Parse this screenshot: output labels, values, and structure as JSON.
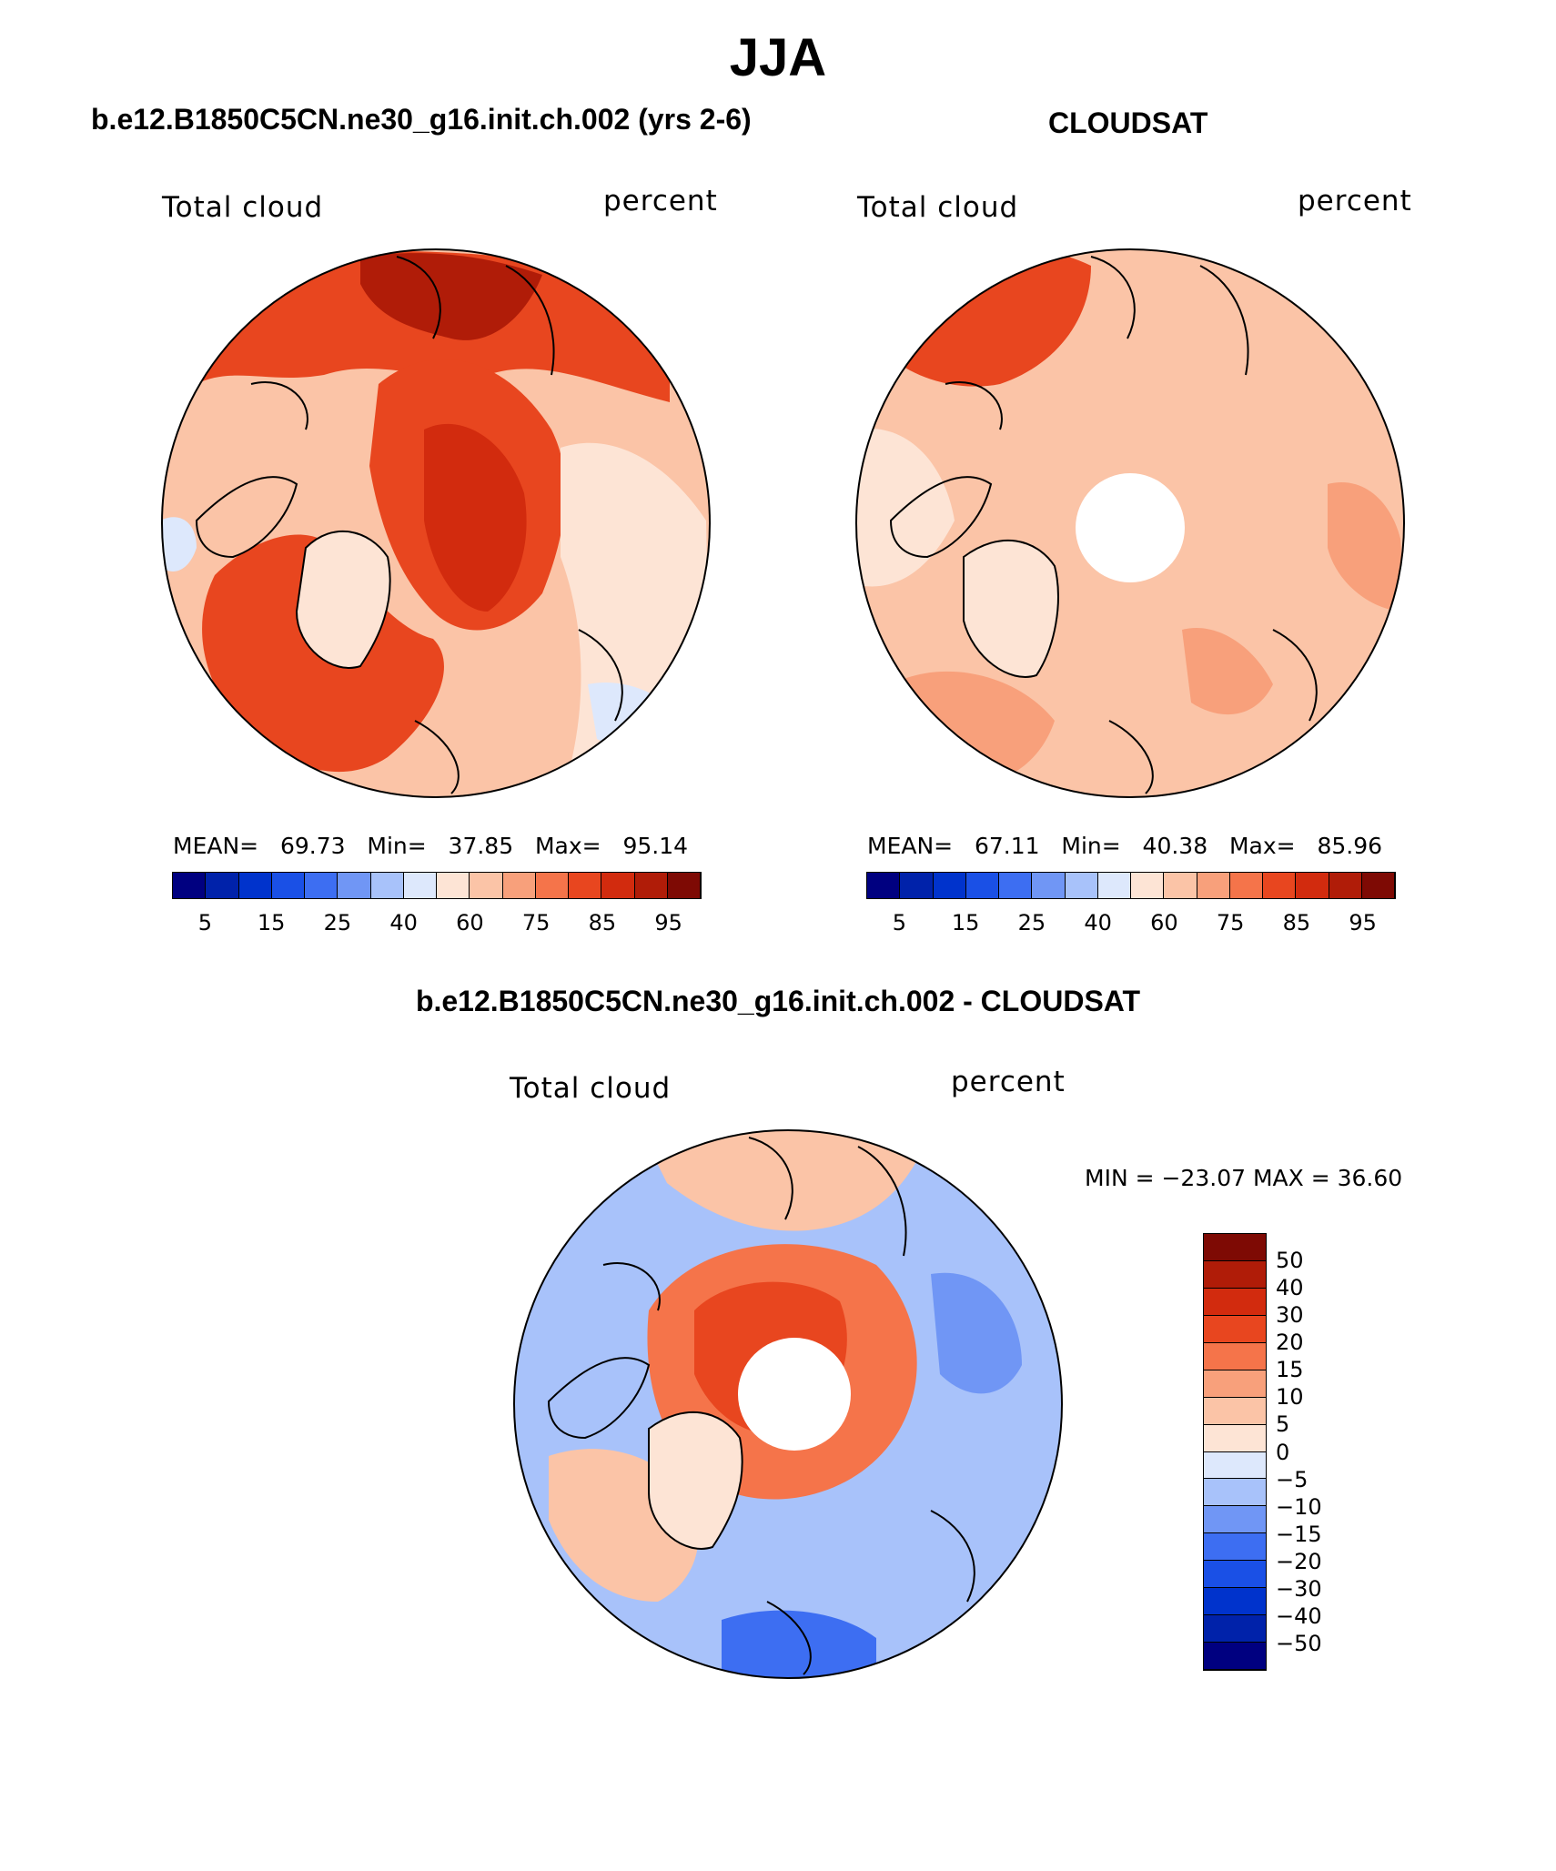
{
  "title": "JJA",
  "panels": {
    "model": {
      "title": "b.e12.B1850C5CN.ne30_g16.init.ch.002 (yrs 2-6)",
      "variable": "Total cloud",
      "units": "percent",
      "stats": {
        "mean_label": "MEAN=",
        "mean": "69.73",
        "min_label": "Min=",
        "min": "37.85",
        "max_label": "Max=",
        "max": "95.14"
      }
    },
    "obs": {
      "title": "CLOUDSAT",
      "variable": "Total cloud",
      "units": "percent",
      "stats": {
        "mean_label": "MEAN=",
        "mean": "67.11",
        "min_label": "Min=",
        "min": "40.38",
        "max_label": "Max=",
        "max": "85.96"
      }
    },
    "diff": {
      "title": "b.e12.B1850C5CN.ne30_g16.init.ch.002 - CLOUDSAT",
      "variable": "Total cloud",
      "units": "percent",
      "range_text": "MIN = −23.07 MAX =   36.60"
    }
  },
  "colorbar_abs": {
    "labels": [
      "5",
      "15",
      "25",
      "40",
      "60",
      "75",
      "85",
      "95"
    ],
    "colors": [
      "#000080",
      "#0022aa",
      "#0033cc",
      "#1a50e6",
      "#3d6ef2",
      "#7096f5",
      "#a8c2fa",
      "#dde8fc",
      "#fde4d5",
      "#fbc4a7",
      "#f8a07b",
      "#f5744a",
      "#e8461f",
      "#d22b0e",
      "#b01c08",
      "#7e0a04"
    ]
  },
  "colorbar_diff": {
    "labels": [
      "50",
      "40",
      "30",
      "20",
      "15",
      "10",
      "5",
      "0",
      "−5",
      "−10",
      "−15",
      "−20",
      "−30",
      "−40",
      "−50"
    ],
    "colors": [
      "#7e0a04",
      "#b01c08",
      "#d22b0e",
      "#e8461f",
      "#f5744a",
      "#f8a07b",
      "#fbc4a7",
      "#fde4d5",
      "#dde8fc",
      "#a8c2fa",
      "#7096f5",
      "#3d6ef2",
      "#1a50e6",
      "#0033cc",
      "#0022aa",
      "#000080"
    ]
  },
  "map_colors": {
    "land_outline": "#000000",
    "pole_hole": "#ffffff"
  }
}
